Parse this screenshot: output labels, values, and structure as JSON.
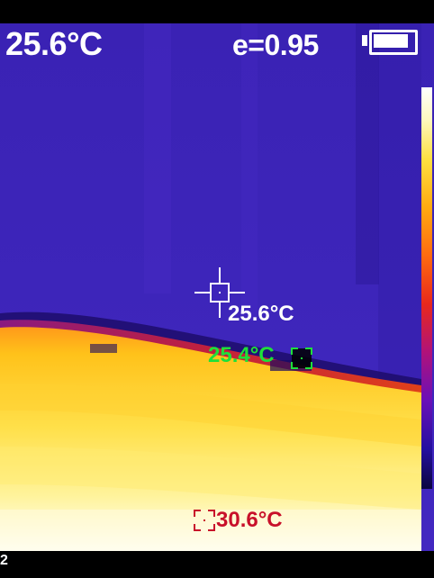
{
  "status_bar": {
    "center_temperature": "25.6°C",
    "emissivity": "e=0.95",
    "battery_icon": "battery-full-icon"
  },
  "thermal_view": {
    "palette": "iron",
    "spot_center": {
      "label": "25.6°C",
      "marker_icon": "crosshair-icon"
    },
    "spot_min": {
      "label": "25.4°C",
      "marker_icon": "min-box-marker-icon",
      "color": "#1ee03a"
    },
    "spot_max": {
      "label": "30.6°C",
      "marker_icon": "max-box-marker-icon",
      "color": "#c8102a"
    }
  },
  "colors": {
    "background": "#000000",
    "cold": "#3c24b7",
    "hot": "#fff37a"
  },
  "edge_text": "2"
}
